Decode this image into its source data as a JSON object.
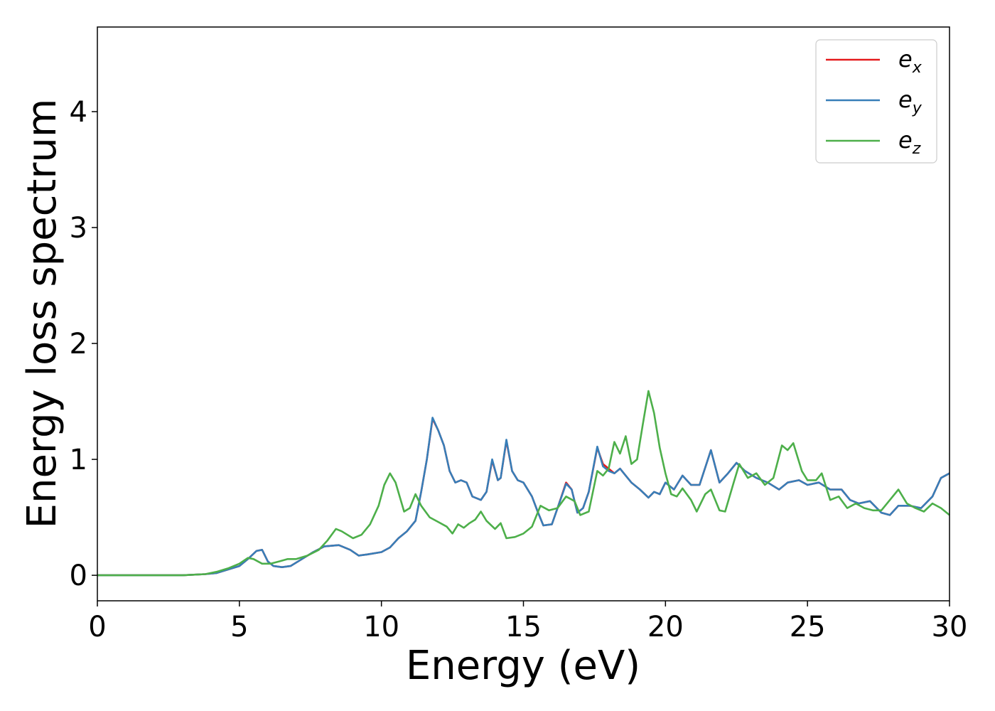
{
  "chart_data": {
    "type": "line",
    "xlabel": "Energy (eV)",
    "ylabel": "Energy loss spectrum",
    "xlim": [
      0,
      30
    ],
    "ylim": [
      -0.22,
      4.73
    ],
    "xticks": [
      0,
      5,
      10,
      15,
      20,
      25,
      30
    ],
    "yticks": [
      0,
      1,
      2,
      3,
      4
    ],
    "grid": false,
    "legend_position": "top-right",
    "legend": [
      {
        "base": "e",
        "sub": "x",
        "color": "#e41a1c"
      },
      {
        "base": "e",
        "sub": "y",
        "color": "#377eb8"
      },
      {
        "base": "e",
        "sub": "z",
        "color": "#4daf4a"
      }
    ],
    "series": [
      {
        "color": "#e41a1c",
        "points": [
          [
            0,
            0
          ],
          [
            1,
            0
          ],
          [
            2,
            0
          ],
          [
            3,
            0
          ],
          [
            3.8,
            0.01
          ],
          [
            4.2,
            0.02
          ],
          [
            4.6,
            0.05
          ],
          [
            5,
            0.08
          ],
          [
            5.3,
            0.14
          ],
          [
            5.6,
            0.21
          ],
          [
            5.8,
            0.22
          ],
          [
            6.0,
            0.12
          ],
          [
            6.2,
            0.08
          ],
          [
            6.5,
            0.07
          ],
          [
            6.8,
            0.08
          ],
          [
            7.2,
            0.14
          ],
          [
            7.6,
            0.2
          ],
          [
            8.0,
            0.25
          ],
          [
            8.5,
            0.26
          ],
          [
            8.9,
            0.22
          ],
          [
            9.2,
            0.17
          ],
          [
            9.5,
            0.18
          ],
          [
            10.0,
            0.2
          ],
          [
            10.3,
            0.24
          ],
          [
            10.6,
            0.32
          ],
          [
            10.9,
            0.38
          ],
          [
            11.2,
            0.47
          ],
          [
            11.4,
            0.72
          ],
          [
            11.6,
            1.0
          ],
          [
            11.8,
            1.35
          ],
          [
            12.0,
            1.25
          ],
          [
            12.2,
            1.12
          ],
          [
            12.4,
            0.9
          ],
          [
            12.6,
            0.8
          ],
          [
            12.8,
            0.82
          ],
          [
            13.0,
            0.8
          ],
          [
            13.2,
            0.68
          ],
          [
            13.5,
            0.65
          ],
          [
            13.7,
            0.72
          ],
          [
            13.9,
            0.99
          ],
          [
            14.1,
            0.82
          ],
          [
            14.2,
            0.84
          ],
          [
            14.4,
            1.16
          ],
          [
            14.6,
            0.9
          ],
          [
            14.8,
            0.82
          ],
          [
            15.0,
            0.8
          ],
          [
            15.3,
            0.68
          ],
          [
            15.5,
            0.55
          ],
          [
            15.7,
            0.43
          ],
          [
            16.0,
            0.44
          ],
          [
            16.2,
            0.58
          ],
          [
            16.5,
            0.8
          ],
          [
            16.7,
            0.74
          ],
          [
            16.9,
            0.54
          ],
          [
            17.1,
            0.58
          ],
          [
            17.3,
            0.72
          ],
          [
            17.6,
            1.1
          ],
          [
            17.8,
            0.96
          ],
          [
            18.0,
            0.92
          ],
          [
            18.2,
            0.88
          ],
          [
            18.4,
            0.92
          ],
          [
            18.6,
            0.86
          ],
          [
            18.8,
            0.8
          ],
          [
            19.1,
            0.74
          ],
          [
            19.4,
            0.67
          ],
          [
            19.6,
            0.72
          ],
          [
            19.8,
            0.7
          ],
          [
            20.0,
            0.8
          ],
          [
            20.3,
            0.74
          ],
          [
            20.6,
            0.86
          ],
          [
            20.9,
            0.78
          ],
          [
            21.2,
            0.78
          ],
          [
            21.6,
            1.08
          ],
          [
            21.9,
            0.8
          ],
          [
            22.2,
            0.88
          ],
          [
            22.5,
            0.97
          ],
          [
            22.8,
            0.9
          ],
          [
            23.2,
            0.84
          ],
          [
            23.6,
            0.8
          ],
          [
            24.0,
            0.74
          ],
          [
            24.3,
            0.8
          ],
          [
            24.7,
            0.82
          ],
          [
            25.0,
            0.78
          ],
          [
            25.4,
            0.8
          ],
          [
            25.8,
            0.74
          ],
          [
            26.2,
            0.74
          ],
          [
            26.5,
            0.65
          ],
          [
            26.8,
            0.62
          ],
          [
            27.2,
            0.64
          ],
          [
            27.6,
            0.54
          ],
          [
            27.9,
            0.52
          ],
          [
            28.2,
            0.6
          ],
          [
            28.6,
            0.6
          ],
          [
            29.0,
            0.58
          ],
          [
            29.4,
            0.68
          ],
          [
            29.7,
            0.84
          ],
          [
            30.0,
            0.88
          ]
        ]
      },
      {
        "color": "#377eb8",
        "points": [
          [
            0,
            0
          ],
          [
            1,
            0
          ],
          [
            2,
            0
          ],
          [
            3,
            0
          ],
          [
            3.8,
            0.01
          ],
          [
            4.2,
            0.02
          ],
          [
            4.6,
            0.05
          ],
          [
            5,
            0.08
          ],
          [
            5.3,
            0.14
          ],
          [
            5.6,
            0.21
          ],
          [
            5.8,
            0.22
          ],
          [
            6.0,
            0.12
          ],
          [
            6.2,
            0.08
          ],
          [
            6.5,
            0.07
          ],
          [
            6.8,
            0.08
          ],
          [
            7.2,
            0.14
          ],
          [
            7.6,
            0.2
          ],
          [
            8.0,
            0.25
          ],
          [
            8.5,
            0.26
          ],
          [
            8.9,
            0.22
          ],
          [
            9.2,
            0.17
          ],
          [
            9.5,
            0.18
          ],
          [
            10.0,
            0.2
          ],
          [
            10.3,
            0.24
          ],
          [
            10.6,
            0.32
          ],
          [
            10.9,
            0.38
          ],
          [
            11.2,
            0.47
          ],
          [
            11.4,
            0.72
          ],
          [
            11.6,
            1.0
          ],
          [
            11.8,
            1.36
          ],
          [
            12.0,
            1.25
          ],
          [
            12.2,
            1.12
          ],
          [
            12.4,
            0.9
          ],
          [
            12.6,
            0.8
          ],
          [
            12.8,
            0.82
          ],
          [
            13.0,
            0.8
          ],
          [
            13.2,
            0.68
          ],
          [
            13.5,
            0.65
          ],
          [
            13.7,
            0.72
          ],
          [
            13.9,
            1.0
          ],
          [
            14.1,
            0.82
          ],
          [
            14.2,
            0.84
          ],
          [
            14.4,
            1.17
          ],
          [
            14.6,
            0.9
          ],
          [
            14.8,
            0.82
          ],
          [
            15.0,
            0.8
          ],
          [
            15.3,
            0.68
          ],
          [
            15.5,
            0.55
          ],
          [
            15.7,
            0.43
          ],
          [
            16.0,
            0.44
          ],
          [
            16.2,
            0.58
          ],
          [
            16.5,
            0.79
          ],
          [
            16.7,
            0.74
          ],
          [
            16.9,
            0.54
          ],
          [
            17.1,
            0.58
          ],
          [
            17.3,
            0.72
          ],
          [
            17.6,
            1.11
          ],
          [
            17.8,
            0.94
          ],
          [
            18.0,
            0.9
          ],
          [
            18.2,
            0.88
          ],
          [
            18.4,
            0.92
          ],
          [
            18.6,
            0.86
          ],
          [
            18.8,
            0.8
          ],
          [
            19.1,
            0.74
          ],
          [
            19.4,
            0.67
          ],
          [
            19.6,
            0.72
          ],
          [
            19.8,
            0.7
          ],
          [
            20.0,
            0.8
          ],
          [
            20.3,
            0.74
          ],
          [
            20.6,
            0.86
          ],
          [
            20.9,
            0.78
          ],
          [
            21.2,
            0.78
          ],
          [
            21.6,
            1.08
          ],
          [
            21.9,
            0.8
          ],
          [
            22.2,
            0.88
          ],
          [
            22.5,
            0.97
          ],
          [
            22.8,
            0.9
          ],
          [
            23.2,
            0.84
          ],
          [
            23.6,
            0.8
          ],
          [
            24.0,
            0.74
          ],
          [
            24.3,
            0.8
          ],
          [
            24.7,
            0.82
          ],
          [
            25.0,
            0.78
          ],
          [
            25.4,
            0.8
          ],
          [
            25.8,
            0.74
          ],
          [
            26.2,
            0.74
          ],
          [
            26.5,
            0.65
          ],
          [
            26.8,
            0.62
          ],
          [
            27.2,
            0.64
          ],
          [
            27.6,
            0.54
          ],
          [
            27.9,
            0.52
          ],
          [
            28.2,
            0.6
          ],
          [
            28.6,
            0.6
          ],
          [
            29.0,
            0.58
          ],
          [
            29.4,
            0.68
          ],
          [
            29.7,
            0.84
          ],
          [
            30.0,
            0.88
          ]
        ]
      },
      {
        "color": "#4daf4a",
        "points": [
          [
            0,
            0
          ],
          [
            1,
            0
          ],
          [
            2,
            0
          ],
          [
            3,
            0
          ],
          [
            3.8,
            0.01
          ],
          [
            4.2,
            0.03
          ],
          [
            4.6,
            0.06
          ],
          [
            5,
            0.1
          ],
          [
            5.3,
            0.15
          ],
          [
            5.5,
            0.14
          ],
          [
            5.8,
            0.1
          ],
          [
            6.1,
            0.1
          ],
          [
            6.4,
            0.12
          ],
          [
            6.7,
            0.14
          ],
          [
            7.0,
            0.14
          ],
          [
            7.4,
            0.17
          ],
          [
            7.8,
            0.22
          ],
          [
            8.1,
            0.3
          ],
          [
            8.4,
            0.4
          ],
          [
            8.6,
            0.38
          ],
          [
            9.0,
            0.32
          ],
          [
            9.3,
            0.35
          ],
          [
            9.6,
            0.44
          ],
          [
            9.9,
            0.6
          ],
          [
            10.1,
            0.78
          ],
          [
            10.3,
            0.88
          ],
          [
            10.5,
            0.8
          ],
          [
            10.8,
            0.55
          ],
          [
            11.0,
            0.58
          ],
          [
            11.2,
            0.7
          ],
          [
            11.4,
            0.6
          ],
          [
            11.7,
            0.5
          ],
          [
            12.0,
            0.46
          ],
          [
            12.3,
            0.42
          ],
          [
            12.5,
            0.36
          ],
          [
            12.7,
            0.44
          ],
          [
            12.9,
            0.41
          ],
          [
            13.1,
            0.45
          ],
          [
            13.3,
            0.48
          ],
          [
            13.5,
            0.55
          ],
          [
            13.7,
            0.47
          ],
          [
            14.0,
            0.4
          ],
          [
            14.2,
            0.45
          ],
          [
            14.4,
            0.32
          ],
          [
            14.7,
            0.33
          ],
          [
            15.0,
            0.36
          ],
          [
            15.3,
            0.42
          ],
          [
            15.6,
            0.6
          ],
          [
            15.9,
            0.56
          ],
          [
            16.2,
            0.58
          ],
          [
            16.5,
            0.68
          ],
          [
            16.8,
            0.64
          ],
          [
            17.0,
            0.52
          ],
          [
            17.3,
            0.55
          ],
          [
            17.6,
            0.9
          ],
          [
            17.8,
            0.86
          ],
          [
            18.0,
            0.92
          ],
          [
            18.2,
            1.15
          ],
          [
            18.4,
            1.05
          ],
          [
            18.6,
            1.2
          ],
          [
            18.8,
            0.96
          ],
          [
            19.0,
            1.0
          ],
          [
            19.2,
            1.3
          ],
          [
            19.4,
            1.59
          ],
          [
            19.6,
            1.4
          ],
          [
            19.8,
            1.1
          ],
          [
            20.0,
            0.88
          ],
          [
            20.2,
            0.7
          ],
          [
            20.4,
            0.68
          ],
          [
            20.6,
            0.75
          ],
          [
            20.9,
            0.65
          ],
          [
            21.1,
            0.55
          ],
          [
            21.4,
            0.7
          ],
          [
            21.6,
            0.74
          ],
          [
            21.9,
            0.56
          ],
          [
            22.1,
            0.55
          ],
          [
            22.4,
            0.8
          ],
          [
            22.6,
            0.96
          ],
          [
            22.9,
            0.84
          ],
          [
            23.2,
            0.88
          ],
          [
            23.5,
            0.78
          ],
          [
            23.8,
            0.84
          ],
          [
            24.1,
            1.12
          ],
          [
            24.3,
            1.08
          ],
          [
            24.5,
            1.14
          ],
          [
            24.8,
            0.9
          ],
          [
            25.0,
            0.82
          ],
          [
            25.3,
            0.82
          ],
          [
            25.5,
            0.88
          ],
          [
            25.8,
            0.65
          ],
          [
            26.1,
            0.68
          ],
          [
            26.4,
            0.58
          ],
          [
            26.7,
            0.62
          ],
          [
            27.0,
            0.58
          ],
          [
            27.3,
            0.56
          ],
          [
            27.6,
            0.56
          ],
          [
            27.9,
            0.65
          ],
          [
            28.2,
            0.74
          ],
          [
            28.5,
            0.62
          ],
          [
            28.8,
            0.58
          ],
          [
            29.1,
            0.55
          ],
          [
            29.4,
            0.62
          ],
          [
            29.7,
            0.58
          ],
          [
            30.0,
            0.52
          ]
        ]
      }
    ]
  }
}
